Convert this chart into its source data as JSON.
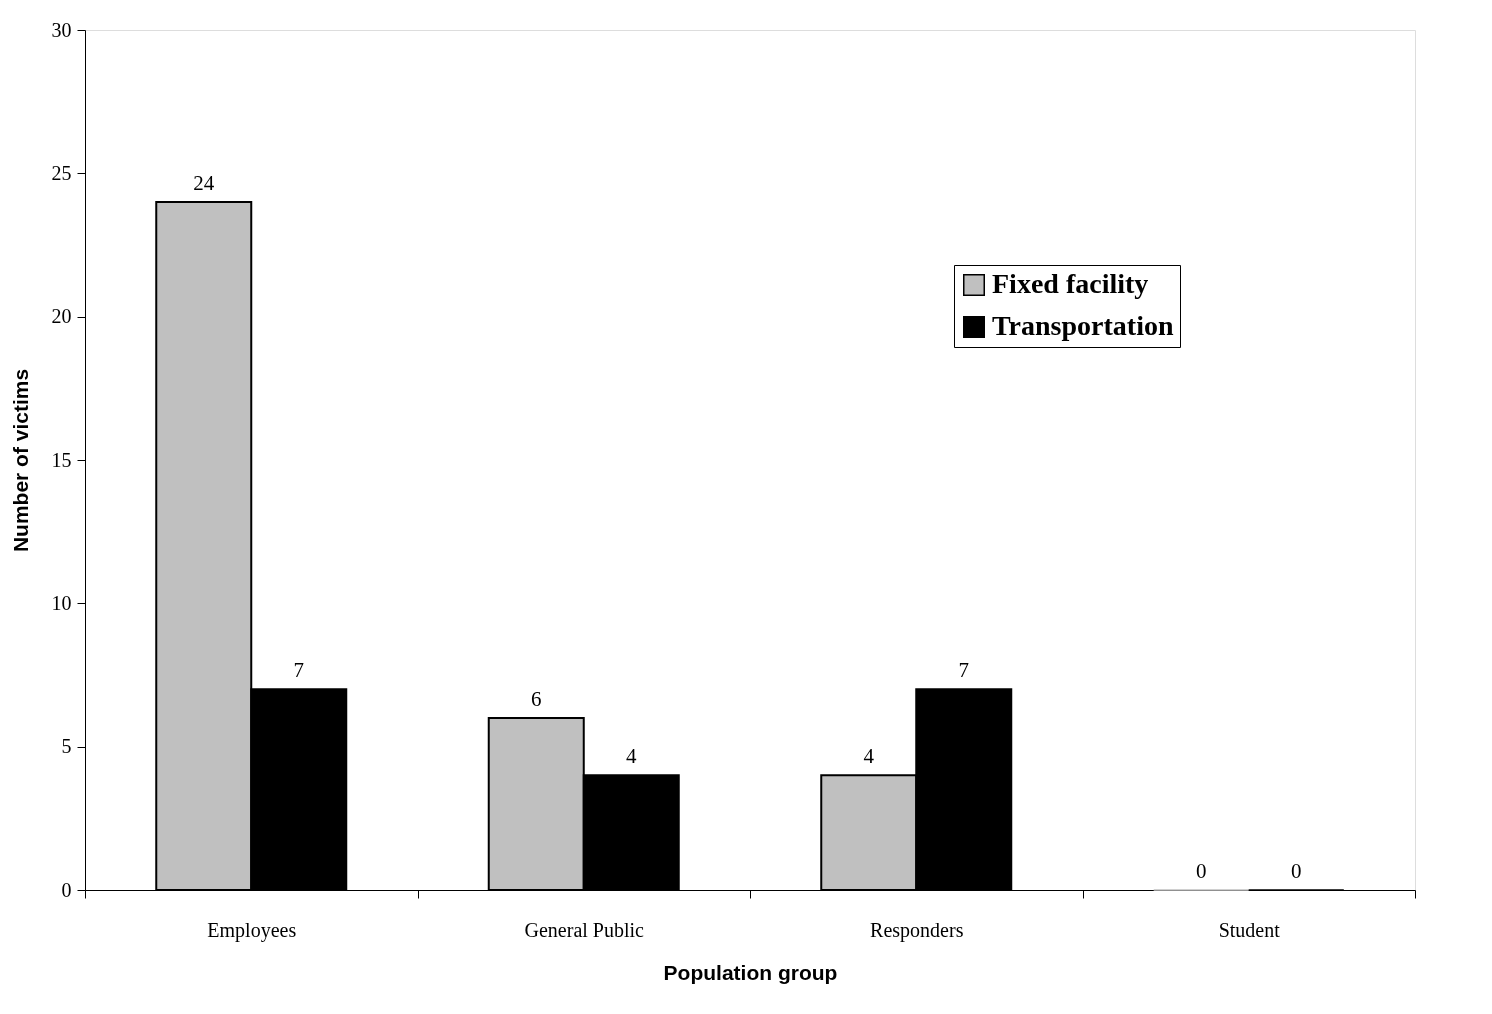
{
  "chart_data": {
    "type": "bar",
    "xlabel": "Population group",
    "ylabel": "Number of victims",
    "categories": [
      "Employees",
      "General Public",
      "Responders",
      "Student"
    ],
    "series": [
      {
        "name": "Fixed facility",
        "color": "#c0c0c0",
        "values": [
          24,
          6,
          4,
          0
        ]
      },
      {
        "name": "Transportation",
        "color": "#000000",
        "values": [
          7,
          4,
          7,
          0
        ]
      }
    ],
    "ylim": [
      0,
      30
    ],
    "yticks": [
      0,
      5,
      10,
      15,
      20,
      25,
      30
    ],
    "grid": false,
    "legend": "top right",
    "data_labels": true
  }
}
